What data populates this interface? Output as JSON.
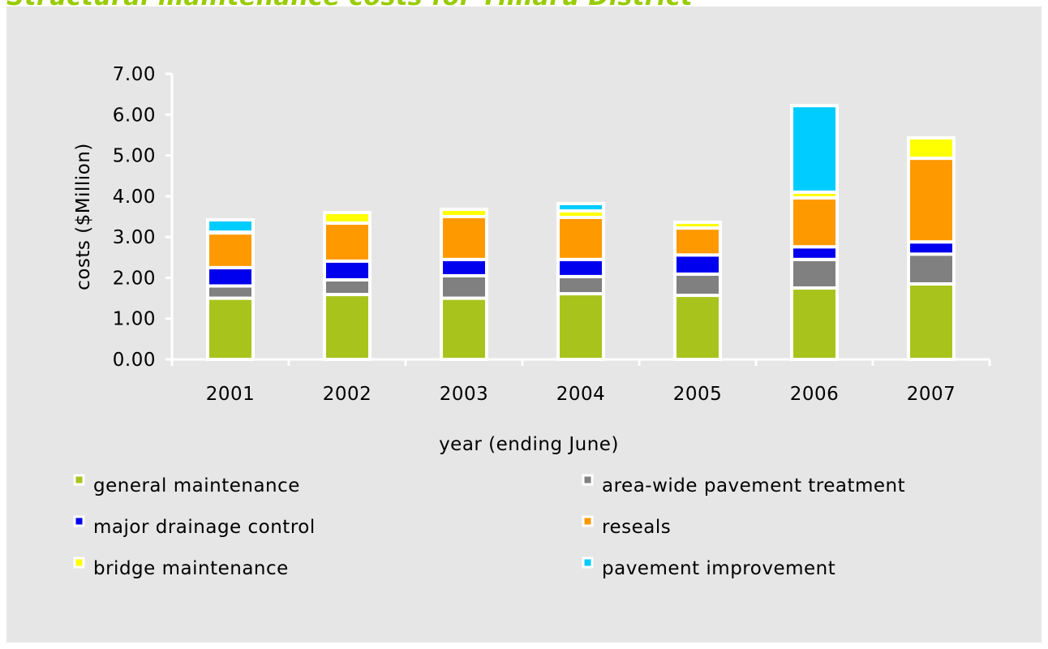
{
  "chart_data": {
    "type": "stacked_bar",
    "title": "Structural maintenance costs for Timaru District",
    "x_label": "year (ending June)",
    "y_label": "costs ($Million)",
    "categories": [
      "2001",
      "2002",
      "2003",
      "2004",
      "2005",
      "2006",
      "2007"
    ],
    "series": [
      {
        "name": "general maintenance",
        "color": "#a8c41c",
        "values": [
          1.5,
          1.59,
          1.5,
          1.61,
          1.57,
          1.75,
          1.85
        ]
      },
      {
        "name": "area-wide pavement treatment",
        "color": "#808080",
        "values": [
          0.3,
          0.36,
          0.55,
          0.42,
          0.52,
          0.7,
          0.73
        ]
      },
      {
        "name": "major drainage control",
        "color": "#0000ee",
        "values": [
          0.45,
          0.46,
          0.4,
          0.42,
          0.47,
          0.31,
          0.3
        ]
      },
      {
        "name": "reseals",
        "color": "#ff9900",
        "values": [
          0.85,
          0.93,
          1.05,
          1.03,
          0.66,
          1.2,
          2.05
        ]
      },
      {
        "name": "bridge maintenance",
        "color": "#ffff00",
        "values": [
          0.02,
          0.26,
          0.18,
          0.16,
          0.14,
          0.14,
          0.5
        ]
      },
      {
        "name": "pavement improvement",
        "color": "#00ccff",
        "values": [
          0.3,
          0,
          0,
          0.18,
          0,
          2.12,
          0
        ]
      }
    ],
    "ylim": [
      0,
      7
    ],
    "yticks": [
      {
        "value": 0,
        "label": "0.00"
      },
      {
        "value": 1,
        "label": "1.00"
      },
      {
        "value": 2,
        "label": "2.00"
      },
      {
        "value": 3,
        "label": "3.00"
      },
      {
        "value": 4,
        "label": "4.00"
      },
      {
        "value": 5,
        "label": "5.00"
      },
      {
        "value": 6,
        "label": "6.00"
      },
      {
        "value": 7,
        "label": "7.00"
      }
    ],
    "grid": false
  }
}
